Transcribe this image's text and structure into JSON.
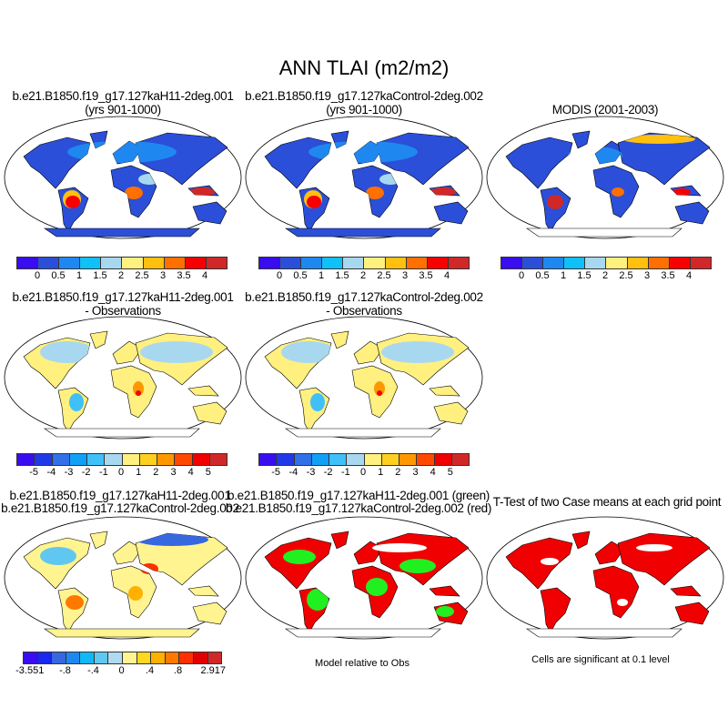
{
  "title": "ANN TLAI (m2/m2)",
  "panels": [
    {
      "line1": "b.e21.B1850.f19_g17.127kaH11-2deg.001",
      "line2": "(yrs 901-1000)"
    },
    {
      "line1": "b.e21.B1850.f19_g17.127kaControl-2deg.002",
      "line2": "(yrs 901-1000)"
    },
    {
      "line1": "MODIS (2001-2003)"
    },
    {
      "line1": "b.e21.B1850.f19_g17.127kaH11-2deg.001",
      "line2": "- Observations"
    },
    {
      "line1": "b.e21.B1850.f19_g17.127kaControl-2deg.002",
      "line2": "- Observations"
    },
    {
      "line1": "b.e21.B1850.f19_g17.127kaH11-2deg.001",
      "line2": "b.e21.B1850.f19_g17.127kaControl-2deg.002"
    },
    {
      "line1": "b.e21.B1850.f19_g17.127kaH11-2deg.001 (green)",
      "line2": "b.e21.B1850.f19_g17.127kaControl-2deg.002 (red)"
    },
    {
      "line1": "T-Test of two Case means at each grid point"
    }
  ],
  "colorbars": {
    "absolute": {
      "labels": [
        "0",
        "0.5",
        "1",
        "1.5",
        "2",
        "2.5",
        "3",
        "3.5",
        "4"
      ],
      "colors": [
        "#3a0cf0",
        "#2b4fd8",
        "#1e88f0",
        "#10c0f8",
        "#a8d8f0",
        "#fff080",
        "#ffc010",
        "#ff7000",
        "#f80000",
        "#d02828"
      ]
    },
    "difference": {
      "labels": [
        "-5",
        "-4",
        "-3",
        "-2",
        "-1",
        "0",
        "1",
        "2",
        "3",
        "4",
        "5"
      ],
      "colors": [
        "#3a0cf0",
        "#2038e8",
        "#3070e8",
        "#10a0f8",
        "#40c0f8",
        "#a8d8f0",
        "#fff080",
        "#ffd020",
        "#ff9800",
        "#ff4800",
        "#f00000",
        "#d02828"
      ]
    },
    "case_difference": {
      "labels": [
        "-3.551",
        "-.8",
        "-.4",
        "0",
        ".4",
        ".8",
        "2.917"
      ],
      "colors": [
        "#3a0cf0",
        "#1828f0",
        "#3868e0",
        "#1e88f0",
        "#10b8f8",
        "#60c8f0",
        "#b0daf0",
        "#fff490",
        "#ffd820",
        "#ffb000",
        "#ff7800",
        "#ff3000",
        "#e00000",
        "#d02828"
      ]
    }
  },
  "captions": {
    "model_relative": "Model relative to Obs",
    "significance": "Cells are significant at 0.1 level"
  }
}
